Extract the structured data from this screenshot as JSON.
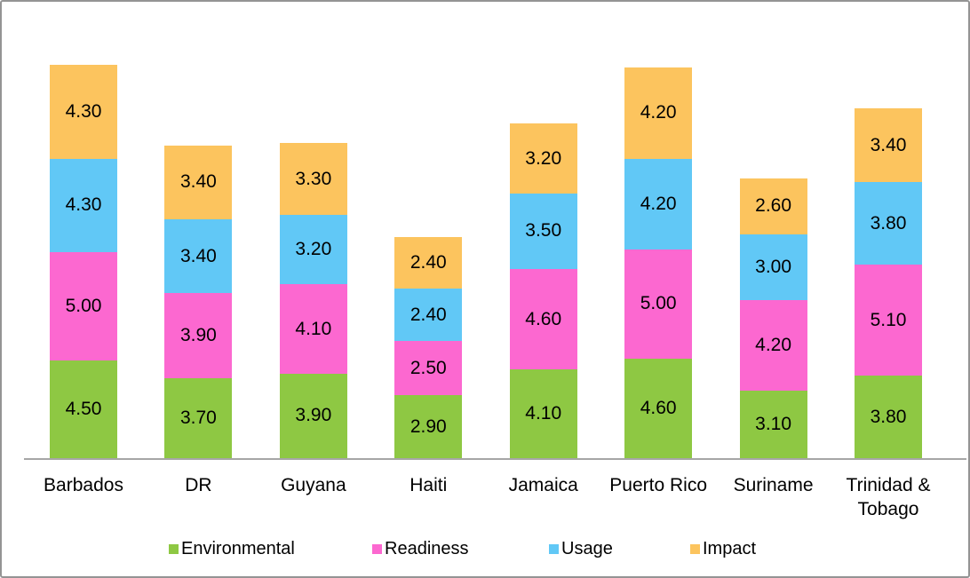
{
  "chart_data": {
    "type": "bar",
    "stacked": true,
    "title": "",
    "grid": false,
    "y_axis_visible": false,
    "value_labels_visible": true,
    "value_label_decimals": 2,
    "legend_position": "bottom",
    "ylim": [
      0,
      18.1
    ],
    "categories": [
      "Barbados",
      "DR",
      "Guyana",
      "Haiti",
      "Jamaica",
      "Puerto Rico",
      "Suriname",
      "Trinidad & Tobago"
    ],
    "series": [
      {
        "name": "Environmental",
        "color": "#8EC843",
        "values": [
          4.5,
          3.7,
          3.9,
          2.9,
          4.1,
          4.6,
          3.1,
          3.8
        ]
      },
      {
        "name": "Readiness",
        "color": "#FC68D0",
        "values": [
          5.0,
          3.9,
          4.1,
          2.5,
          4.6,
          5.0,
          4.2,
          5.1
        ]
      },
      {
        "name": "Usage",
        "color": "#61C8F6",
        "values": [
          4.3,
          3.4,
          3.2,
          2.4,
          3.5,
          4.2,
          3.0,
          3.8
        ]
      },
      {
        "name": "Impact",
        "color": "#FCC45E",
        "values": [
          4.3,
          3.4,
          3.3,
          2.4,
          3.2,
          4.2,
          2.6,
          3.4
        ]
      }
    ],
    "legend_entries": [
      "Environmental",
      "Readiness",
      "Usage",
      "Impact"
    ],
    "axis_line_color": "#A6A6A6",
    "frame_border_color": "#949494"
  }
}
